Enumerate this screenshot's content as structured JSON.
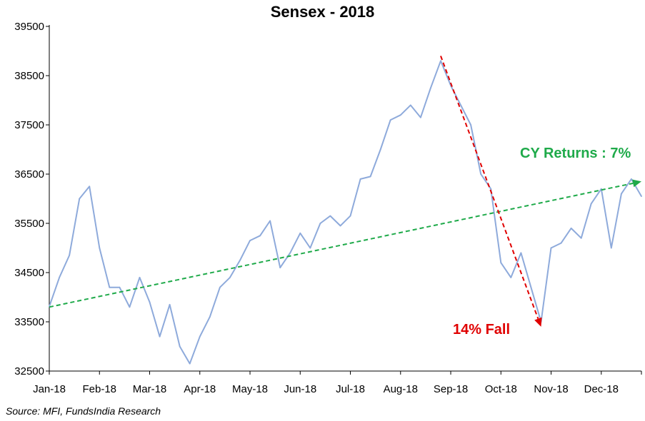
{
  "chart_data": {
    "type": "line",
    "title": "Sensex - 2018",
    "xlabel": "",
    "ylabel": "",
    "ylim": [
      32500,
      39500
    ],
    "yticks": [
      32500,
      33500,
      34500,
      35500,
      36500,
      37500,
      38500,
      39500
    ],
    "x_tick_labels": [
      "Jan-18",
      "Feb-18",
      "Mar-18",
      "Apr-18",
      "May-18",
      "Jun-18",
      "Jul-18",
      "Aug-18",
      "Sep-18",
      "Oct-18",
      "Nov-18",
      "Dec-18"
    ],
    "grid": false,
    "legend": "none",
    "series": [
      {
        "color": "#8eaadb",
        "points": [
          [
            "Jan-18",
            33810
          ],
          [
            "Jan-18+1w",
            34400
          ],
          [
            "Jan-18+2w",
            34850
          ],
          [
            "Jan-18+3w",
            36000
          ],
          [
            "Jan-18+4w",
            36250
          ],
          [
            "Feb-18",
            35000
          ],
          [
            "Feb-18+1w",
            34200
          ],
          [
            "Feb-18+2w",
            34200
          ],
          [
            "Feb-18+3w",
            33800
          ],
          [
            "Feb-18+4w",
            34400
          ],
          [
            "Mar-18",
            33900
          ],
          [
            "Mar-18+1w",
            33200
          ],
          [
            "Mar-18+2w",
            33850
          ],
          [
            "Mar-18+3w",
            33000
          ],
          [
            "Mar-18+4w",
            32650
          ],
          [
            "Apr-18",
            33200
          ],
          [
            "Apr-18+1w",
            33600
          ],
          [
            "Apr-18+2w",
            34200
          ],
          [
            "Apr-18+3w",
            34400
          ],
          [
            "Apr-18+4w",
            34750
          ],
          [
            "May-18",
            35150
          ],
          [
            "May-18+1w",
            35250
          ],
          [
            "May-18+2w",
            35550
          ],
          [
            "May-18+3w",
            34600
          ],
          [
            "May-18+4w",
            34900
          ],
          [
            "Jun-18",
            35300
          ],
          [
            "Jun-18+1w",
            35000
          ],
          [
            "Jun-18+2w",
            35500
          ],
          [
            "Jun-18+3w",
            35650
          ],
          [
            "Jun-18+4w",
            35450
          ],
          [
            "Jul-18",
            35650
          ],
          [
            "Jul-18+1w",
            36400
          ],
          [
            "Jul-18+2w",
            36450
          ],
          [
            "Jul-18+3w",
            37000
          ],
          [
            "Jul-18+4w",
            37600
          ],
          [
            "Aug-18",
            37700
          ],
          [
            "Aug-18+1w",
            37900
          ],
          [
            "Aug-18+2w",
            37650
          ],
          [
            "Aug-18+3w",
            38250
          ],
          [
            "Aug-18+4w",
            38800
          ],
          [
            "Sep-18",
            38300
          ],
          [
            "Sep-18+1w",
            37900
          ],
          [
            "Sep-18+2w",
            37500
          ],
          [
            "Sep-18+3w",
            36500
          ],
          [
            "Sep-18+4w",
            36200
          ],
          [
            "Oct-18",
            34700
          ],
          [
            "Oct-18+1w",
            34400
          ],
          [
            "Oct-18+2w",
            34900
          ],
          [
            "Oct-18+3w",
            34200
          ],
          [
            "Oct-18+4w",
            33500
          ],
          [
            "Nov-18",
            35000
          ],
          [
            "Nov-18+1w",
            35100
          ],
          [
            "Nov-18+2w",
            35400
          ],
          [
            "Nov-18+3w",
            35200
          ],
          [
            "Nov-18+4w",
            35900
          ],
          [
            "Dec-18",
            36200
          ],
          [
            "Dec-18+1w",
            35000
          ],
          [
            "Dec-18+2w",
            36100
          ],
          [
            "Dec-18+3w",
            36400
          ],
          [
            "Dec-18+4w",
            36050
          ]
        ]
      }
    ],
    "trend_lines": [
      {
        "color": "#1faa4a",
        "style": "dashed",
        "from": [
          "Jan-18",
          33800
        ],
        "to": [
          "Dec-18+4w",
          36350
        ]
      },
      {
        "color": "#e00000",
        "style": "dashed",
        "from": [
          "Aug-18+4w",
          38900
        ],
        "to": [
          "Oct-18+4w",
          33400
        ]
      }
    ],
    "annotations": [
      {
        "text": "CY Returns : 7%",
        "color": "#1faa4a"
      },
      {
        "text": "14% Fall",
        "color": "#e00000"
      }
    ]
  },
  "source_note": "Source: MFI, FundsIndia Research"
}
